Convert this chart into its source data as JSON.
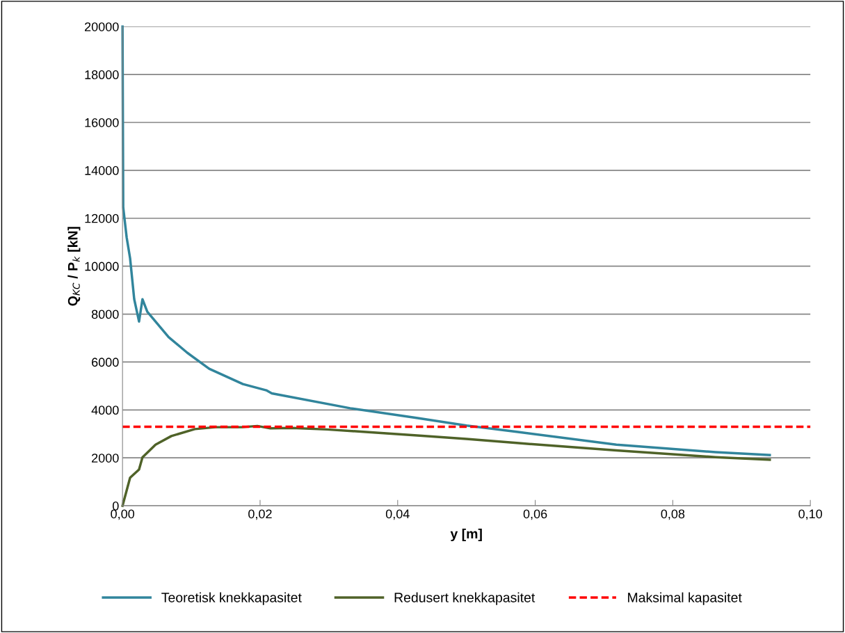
{
  "chart_data": {
    "type": "line",
    "xlabel": "y [m]",
    "ylabel": "Q$_{KC}$ / P$_{k}$ [kN]",
    "xlim": [
      0,
      0.1
    ],
    "xticks": [
      {
        "value": 0,
        "label": "0,00"
      },
      {
        "value": 0.02,
        "label": "0,02"
      },
      {
        "value": 0.04,
        "label": "0,04"
      },
      {
        "value": 0.06,
        "label": "0,06"
      },
      {
        "value": 0.08,
        "label": "0,08"
      },
      {
        "value": 0.1,
        "label": "0,10"
      }
    ],
    "ylim": [
      0,
      20000
    ],
    "yticks": [
      0,
      2000,
      4000,
      6000,
      8000,
      10000,
      12000,
      14000,
      16000,
      18000,
      20000
    ],
    "grid": "y",
    "legend": "bottom",
    "marker": "none",
    "series": [
      {
        "name": "Teoretisk knekkapasitet",
        "color": "#31859c",
        "x": [
          0.0,
          0.0001,
          0.0006,
          0.0011,
          0.0017,
          0.0024,
          0.0029,
          0.0036,
          0.0067,
          0.0094,
          0.0126,
          0.0175,
          0.0209,
          0.0217,
          0.0331,
          0.0429,
          0.05,
          0.0573,
          0.0718,
          0.0862,
          0.0941
        ],
        "values": [
          20000,
          12450,
          11200,
          10330,
          8620,
          7690,
          8620,
          8100,
          7040,
          6390,
          5720,
          5080,
          4820,
          4690,
          4070,
          3660,
          3350,
          3090,
          2550,
          2240,
          2120
        ]
      },
      {
        "name": "Redusert knekkapasitet",
        "color": "#4f6228",
        "x": [
          0.0,
          0.0011,
          0.0024,
          0.0029,
          0.0048,
          0.0071,
          0.0105,
          0.0135,
          0.0173,
          0.0196,
          0.0215,
          0.0247,
          0.0297,
          0.0365,
          0.0432,
          0.05,
          0.0573,
          0.0718,
          0.0862,
          0.0941
        ],
        "values": [
          0,
          1170,
          1510,
          2020,
          2550,
          2910,
          3200,
          3280,
          3280,
          3330,
          3230,
          3250,
          3185,
          3060,
          2930,
          2790,
          2620,
          2310,
          2030,
          1920
        ]
      },
      {
        "name": "Maksimal kapasitet",
        "color": "#ff0000",
        "line_style": "dashed",
        "x": [
          0.0,
          0.1
        ],
        "values": [
          3300,
          3300
        ]
      }
    ]
  }
}
